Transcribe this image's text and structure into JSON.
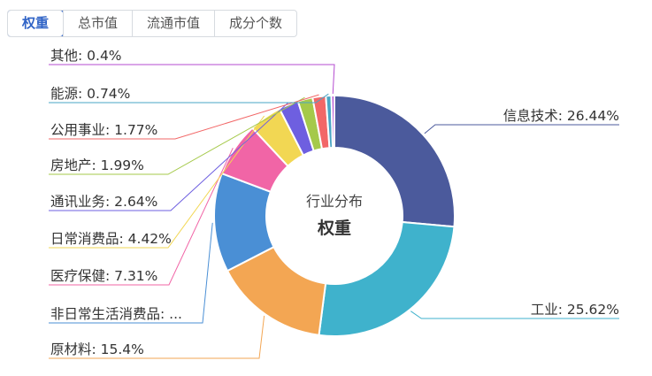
{
  "tabs": [
    {
      "label": "权重",
      "active": true
    },
    {
      "label": "总市值",
      "active": false
    },
    {
      "label": "流通市值",
      "active": false
    },
    {
      "label": "成分个数",
      "active": false
    }
  ],
  "center": {
    "title": "行业分布",
    "subtitle": "权重"
  },
  "chart_data": {
    "type": "pie",
    "donut": true,
    "unit": "%",
    "slices": [
      {
        "name": "信息技术",
        "label": "信息技术: 26.44%",
        "value": 26.44,
        "color": "#4b5a9c"
      },
      {
        "name": "工业",
        "label": "工业: 25.62%",
        "value": 25.62,
        "color": "#3fb2cc"
      },
      {
        "name": "原材料",
        "label": "原材料: 15.4%",
        "value": 15.4,
        "color": "#f3a653"
      },
      {
        "name": "非日常生活消费品",
        "label": "非日常生活消费品: ...",
        "value": 13.28,
        "color": "#4a8fd5"
      },
      {
        "name": "医疗保健",
        "label": "医疗保健: 7.31%",
        "value": 7.31,
        "color": "#f165a6"
      },
      {
        "name": "日常消费品",
        "label": "日常消费品: 4.42%",
        "value": 4.42,
        "color": "#f2d753"
      },
      {
        "name": "通讯业务",
        "label": "通讯业务: 2.64%",
        "value": 2.64,
        "color": "#6e5fe0"
      },
      {
        "name": "房地产",
        "label": "房地产: 1.99%",
        "value": 1.99,
        "color": "#a5c94a"
      },
      {
        "name": "公用事业",
        "label": "公用事业: 1.77%",
        "value": 1.77,
        "color": "#f26767"
      },
      {
        "name": "能源",
        "label": "能源: 0.74%",
        "value": 0.74,
        "color": "#4aa5c4"
      },
      {
        "name": "其他",
        "label": "其他: 0.4%",
        "value": 0.4,
        "color": "#b44bd0"
      }
    ]
  }
}
